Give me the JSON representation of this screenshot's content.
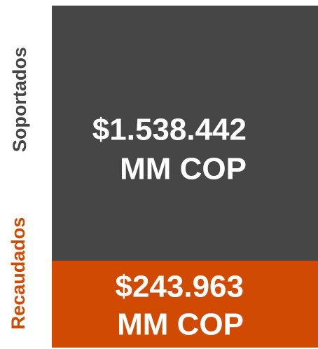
{
  "blocks": [
    {
      "label": "Soportados",
      "amount": "$1.538.442",
      "unit": "MM COP"
    },
    {
      "label": "Recaudados",
      "amount": "$243.963",
      "unit": "MM COP"
    }
  ]
}
